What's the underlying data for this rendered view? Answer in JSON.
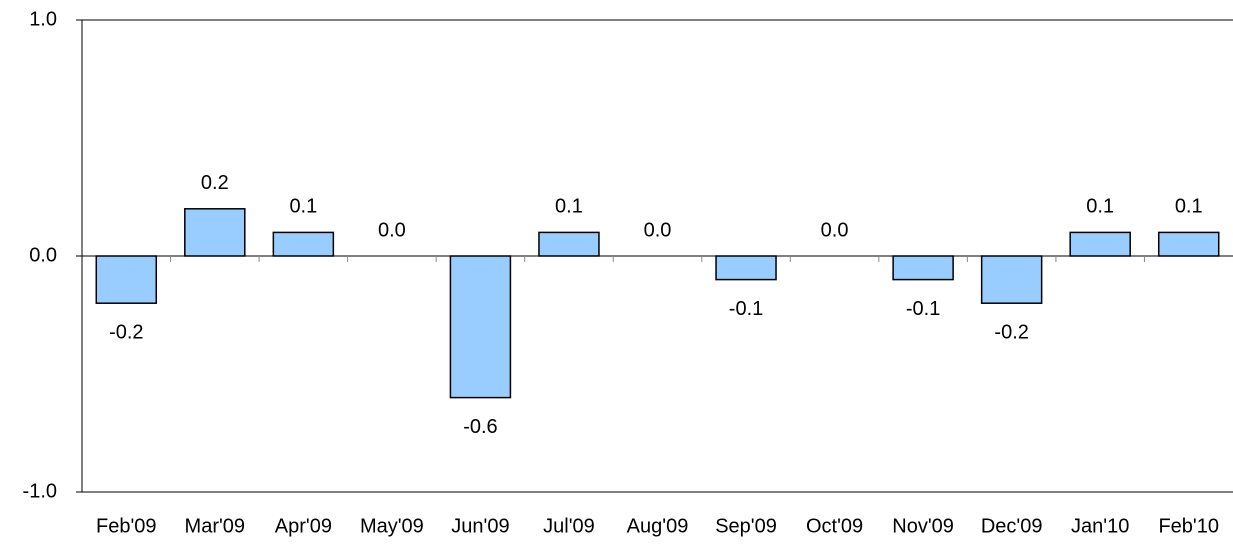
{
  "chart_data": {
    "type": "bar",
    "categories": [
      "Feb'09",
      "Mar'09",
      "Apr'09",
      "May'09",
      "Jun'09",
      "Jul'09",
      "Aug'09",
      "Sep'09",
      "Oct'09",
      "Nov'09",
      "Dec'09",
      "Jan'10",
      "Feb'10"
    ],
    "values": [
      -0.2,
      0.2,
      0.1,
      0,
      -0.6,
      0.1,
      0,
      -0.1,
      0,
      -0.1,
      -0.2,
      0.1,
      0.1
    ],
    "value_labels": [
      "-0.2",
      "0.2",
      "0.1",
      "0.0",
      "-0.6",
      "0.1",
      "0.0",
      "-0.1",
      "0.0",
      "-0.1",
      "-0.2",
      "0.1",
      "0.1"
    ],
    "color": "#99ccff",
    "ylim": [
      -1,
      1
    ],
    "yticks": [
      {
        "value": -1,
        "label": "-1.0"
      },
      {
        "value": 0,
        "label": "0.0"
      },
      {
        "value": 1,
        "label": "1.0"
      }
    ]
  }
}
